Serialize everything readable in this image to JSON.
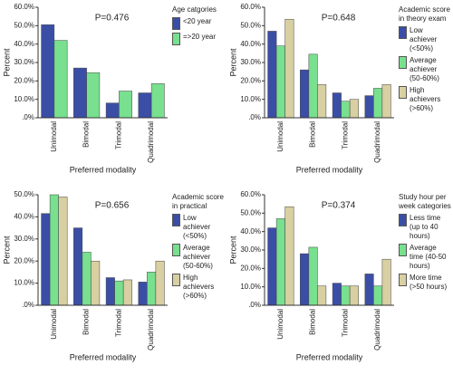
{
  "chart_data": [
    {
      "type": "bar",
      "annotation": "P=0.476",
      "legend_title": "Age catgories",
      "x_label": "Preferred modality",
      "y_label": "Percent",
      "categories": [
        "Unimodal",
        "Bimodal",
        "Trimodal",
        "Quadrimodal"
      ],
      "series": [
        {
          "name": "<20 year",
          "color": "#3b4ea6",
          "values": [
            50.5,
            27,
            8,
            13.5
          ]
        },
        {
          "name": "=>20 year",
          "color": "#78e08e",
          "values": [
            42,
            24.5,
            14.5,
            18.5
          ]
        }
      ],
      "ylim": [
        0,
        60
      ],
      "yticks": [
        {
          "value": 0,
          "label": ".0%"
        },
        {
          "value": 10,
          "label": "10.0%"
        },
        {
          "value": 20,
          "label": "20.0%"
        },
        {
          "value": 30,
          "label": "30.0%"
        },
        {
          "value": 40,
          "label": "40.0%"
        },
        {
          "value": 50,
          "label": "50.0%"
        },
        {
          "value": 60,
          "label": "60.0%"
        }
      ]
    },
    {
      "type": "bar",
      "annotation": "P=0.648",
      "legend_title": "Academic score in theory exam",
      "x_label": "Preferred modality",
      "y_label": "Percent",
      "categories": [
        "Unimodal",
        "Bimodal",
        "Trimodal",
        "Quadrimodal"
      ],
      "series": [
        {
          "name": "Low achiever (<50%)",
          "color": "#3b4ea6",
          "values": [
            47,
            26,
            13.5,
            12
          ]
        },
        {
          "name": "Average achiever (50-60%)",
          "color": "#78e08e",
          "values": [
            39,
            34.5,
            9,
            16
          ]
        },
        {
          "name": "High achievers (>60%)",
          "color": "#d8cfa2",
          "values": [
            53.5,
            18,
            10,
            18
          ]
        }
      ],
      "ylim": [
        0,
        60
      ],
      "yticks": [
        {
          "value": 0,
          "label": ".0%"
        },
        {
          "value": 10,
          "label": "10.0%"
        },
        {
          "value": 20,
          "label": "20.0%"
        },
        {
          "value": 30,
          "label": "30.0%"
        },
        {
          "value": 40,
          "label": "40.0%"
        },
        {
          "value": 50,
          "label": "50.0%"
        },
        {
          "value": 60,
          "label": "60.0%"
        }
      ]
    },
    {
      "type": "bar",
      "annotation": "P=0.656",
      "legend_title": "Academic score in practical",
      "x_label": "Preferred modality",
      "y_label": "Percent",
      "categories": [
        "Unimodal",
        "Bimodal",
        "Trimodal",
        "Quadrimodal"
      ],
      "series": [
        {
          "name": "Low achiever (<50%)",
          "color": "#3b4ea6",
          "values": [
            41.5,
            35,
            12.5,
            10.5
          ]
        },
        {
          "name": "Average achiever (50-60%)",
          "color": "#78e08e",
          "values": [
            50,
            24,
            11,
            15
          ]
        },
        {
          "name": "High achievers (>60%)",
          "color": "#d8cfa2",
          "values": [
            49,
            20,
            11.5,
            20
          ]
        }
      ],
      "ylim": [
        0,
        50
      ],
      "yticks": [
        {
          "value": 0,
          "label": ".0%"
        },
        {
          "value": 10,
          "label": "10.0%"
        },
        {
          "value": 20,
          "label": "20.0%"
        },
        {
          "value": 30,
          "label": "30.0%"
        },
        {
          "value": 40,
          "label": "40.0%"
        },
        {
          "value": 50,
          "label": "50.0%"
        }
      ]
    },
    {
      "type": "bar",
      "annotation": "P=0.374",
      "legend_title": "Study hour per week categories",
      "x_label": "Preferred modality",
      "y_label": "Percent",
      "categories": [
        "Unimodal",
        "Bimodal",
        "Trimodal",
        "Quadrimodal"
      ],
      "series": [
        {
          "name": "Less time (up to 40 hours)",
          "color": "#3b4ea6",
          "values": [
            42,
            28,
            12,
            17
          ]
        },
        {
          "name": "Average time (40-50 hours)",
          "color": "#78e08e",
          "values": [
            47,
            31.5,
            10.5,
            10.5
          ]
        },
        {
          "name": "More time (>50 hours)",
          "color": "#d8cfa2",
          "values": [
            53.5,
            10.5,
            10.5,
            25
          ]
        }
      ],
      "ylim": [
        0,
        60
      ],
      "yticks": [
        {
          "value": 0,
          "label": ".0%"
        },
        {
          "value": 10,
          "label": "10.0%"
        },
        {
          "value": 20,
          "label": "20.0%"
        },
        {
          "value": 30,
          "label": "30.0%"
        },
        {
          "value": 40,
          "label": "40.0%"
        },
        {
          "value": 50,
          "label": "50.0%"
        },
        {
          "value": 60,
          "label": "60.0%"
        }
      ]
    }
  ]
}
